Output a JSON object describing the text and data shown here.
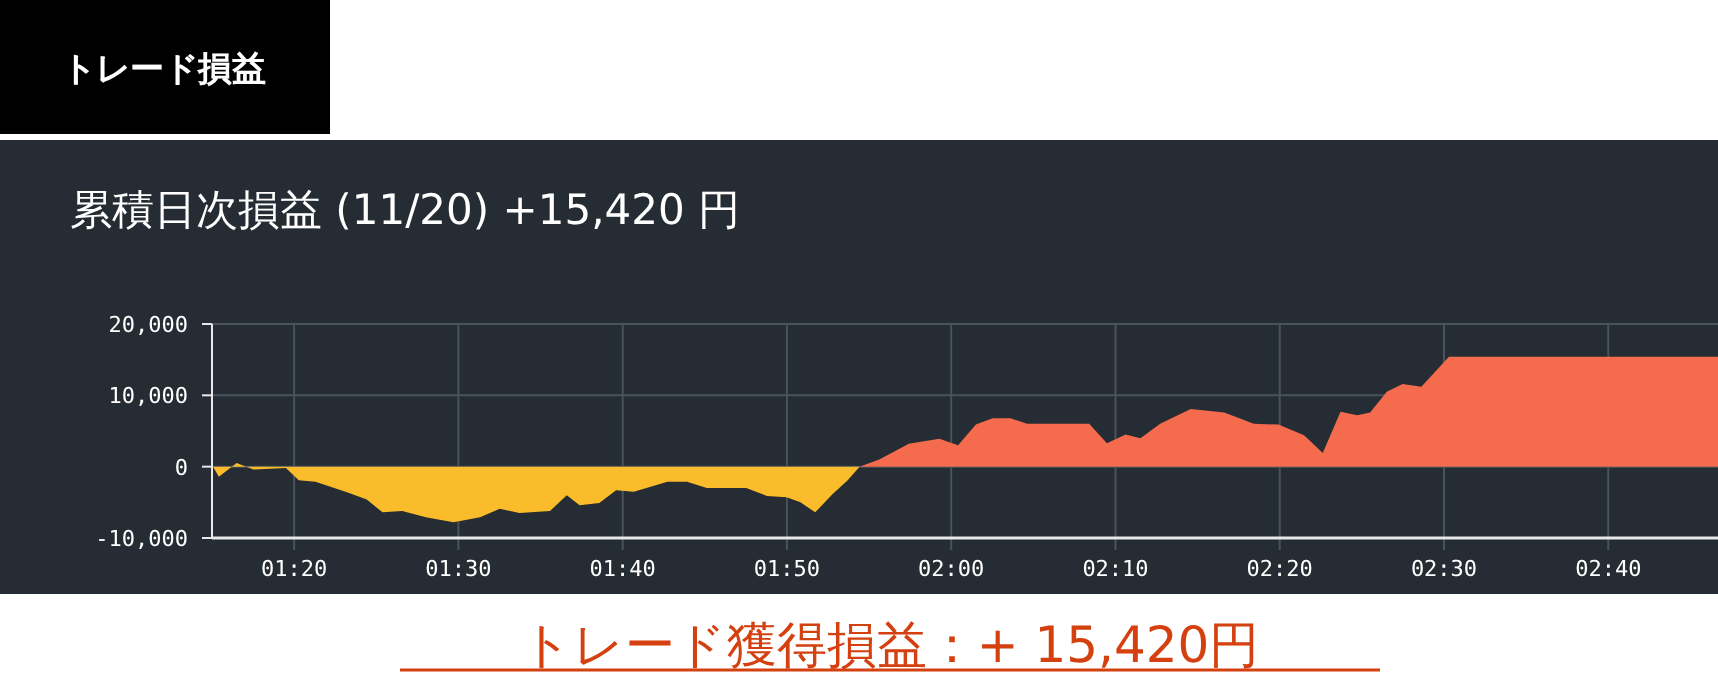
{
  "chart_data": {
    "type": "area",
    "title": "累積日次損益 (11/20) +15,420 円",
    "annotations": [
      "トレード損益",
      "トレード獲得損益：+ 15,420円"
    ],
    "series": [
      {
        "color": "#fbbc2b",
        "x": [
          1.251,
          1.257,
          1.275,
          1.292,
          1.325,
          1.338,
          1.355,
          1.387,
          1.407,
          1.423,
          1.443,
          1.467,
          1.495,
          1.522,
          1.542,
          1.562,
          1.593,
          1.61,
          1.623,
          1.643,
          1.66,
          1.678,
          1.712,
          1.732,
          1.752,
          1.792,
          1.813,
          1.833,
          1.847,
          1.862,
          1.88,
          1.895,
          1.907
        ],
        "values": [
          0,
          -1400,
          500,
          -400,
          -200,
          -1900,
          -2100,
          -3600,
          -4600,
          -6400,
          -6200,
          -7100,
          -7800,
          -7100,
          -5900,
          -6500,
          -6200,
          -4000,
          -5400,
          -5100,
          -3300,
          -3500,
          -2100,
          -2100,
          -3000,
          -3000,
          -4100,
          -4300,
          -5000,
          -6400,
          -3800,
          -1900,
          0
        ]
      },
      {
        "color": "#f56b4d",
        "x": [
          1.907,
          1.927,
          1.957,
          1.988,
          2.007,
          2.025,
          2.042,
          2.06,
          2.077,
          2.14,
          2.158,
          2.177,
          2.192,
          2.212,
          2.243,
          2.277,
          2.307,
          2.332,
          2.358,
          2.377,
          2.395,
          2.412,
          2.425,
          2.442,
          2.458,
          2.477,
          2.505,
          2.778
        ],
        "values": [
          0,
          1000,
          3200,
          3900,
          3000,
          5900,
          6800,
          6800,
          6000,
          6000,
          3300,
          4500,
          4000,
          6000,
          8100,
          7600,
          6000,
          5900,
          4400,
          1900,
          7700,
          7200,
          7600,
          10500,
          11600,
          11200,
          15400,
          15400
        ]
      }
    ],
    "xlim": [
      1.25,
      2.778
    ],
    "xticks": [
      {
        "value": 1.3333,
        "label": "01:20"
      },
      {
        "value": 1.5,
        "label": "01:30"
      },
      {
        "value": 1.6667,
        "label": "01:40"
      },
      {
        "value": 1.8333,
        "label": "01:50"
      },
      {
        "value": 2,
        "label": "02:00"
      },
      {
        "value": 2.1667,
        "label": "02:10"
      },
      {
        "value": 2.3333,
        "label": "02:20"
      },
      {
        "value": 2.5,
        "label": "02:30"
      },
      {
        "value": 2.6667,
        "label": "02:40"
      }
    ],
    "ylim": [
      -10000,
      20000
    ],
    "yticks": [
      {
        "value": -10000,
        "label": "-10,000"
      },
      {
        "value": 0,
        "label": "0"
      },
      {
        "value": 10000,
        "label": "10,000"
      },
      {
        "value": 20000,
        "label": "20,000"
      }
    ],
    "grid": true
  }
}
